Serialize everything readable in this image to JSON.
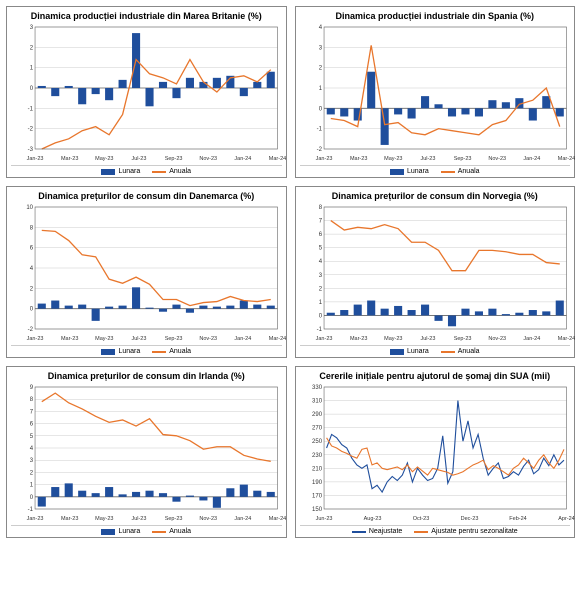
{
  "colors": {
    "bar": "#1f4e9c",
    "line": "#e8762c",
    "line2": "#1f4e9c",
    "axis": "#666",
    "grid": "#ccc",
    "text": "#333"
  },
  "x_labels": [
    "Jan-23",
    "Mar-23",
    "May-23",
    "Jul-23",
    "Sep-23",
    "Nov-23",
    "Jan-24",
    "Mar-24"
  ],
  "x_labels_us": [
    "Jun-23",
    "Aug-23",
    "Oct-23",
    "Dec-23",
    "Feb-24",
    "Apr-24"
  ],
  "charts": [
    {
      "title": "Dinamica producției industriale din Marea Britanie (%)",
      "ylim": [
        -3,
        3
      ],
      "ystep": 1,
      "bars": [
        0.1,
        -0.4,
        0.1,
        -0.8,
        -0.3,
        -0.6,
        0.4,
        2.7,
        -0.9,
        0.3,
        -0.5,
        0.5,
        0.3,
        0.5,
        0.6,
        -0.4,
        0.3,
        0.8
      ],
      "line": [
        -3.0,
        -2.7,
        -2.5,
        -2.1,
        -1.9,
        -2.3,
        -1.3,
        1.4,
        0.7,
        0.5,
        0.2,
        1.4,
        0.3,
        -0.2,
        0.5,
        0.6,
        0.3,
        0.9
      ],
      "legend": [
        "Lunara",
        "Anuala"
      ]
    },
    {
      "title": "Dinamica producției industriale din Spania (%)",
      "ylim": [
        -2,
        4
      ],
      "ystep": 1,
      "bars": [
        -0.3,
        -0.4,
        -0.6,
        1.8,
        -1.8,
        -0.3,
        -0.5,
        0.6,
        0.2,
        -0.4,
        -0.3,
        -0.4,
        0.4,
        0.3,
        0.5,
        -0.6,
        0.6,
        -0.4
      ],
      "line": [
        -0.5,
        -0.6,
        -0.9,
        3.1,
        -0.8,
        -0.7,
        -1.2,
        -1.3,
        -1.0,
        -1.1,
        -1.2,
        -1.3,
        -0.8,
        -0.6,
        0.2,
        0.4,
        1.0,
        -0.9
      ],
      "legend": [
        "Lunara",
        "Anuala"
      ]
    },
    {
      "title": "Dinamica prețurilor de consum din Danemarca (%)",
      "ylim": [
        -2,
        10
      ],
      "ystep": 2,
      "bars": [
        0.5,
        0.8,
        0.3,
        0.4,
        -1.2,
        0.2,
        0.3,
        2.1,
        0.1,
        -0.3,
        0.4,
        -0.4,
        0.3,
        0.2,
        0.3,
        0.8,
        0.4,
        0.3
      ],
      "line": [
        7.7,
        7.6,
        6.7,
        5.3,
        5.1,
        2.9,
        2.5,
        3.1,
        2.4,
        0.9,
        0.9,
        0.3,
        0.6,
        0.7,
        1.2,
        0.8,
        0.7,
        0.9
      ],
      "legend": [
        "Lunara",
        "Anuala"
      ]
    },
    {
      "title": "Dinamica prețurilor de consum din Norvegia (%)",
      "ylim": [
        -1,
        8
      ],
      "ystep": 1,
      "bars": [
        0.2,
        0.4,
        0.8,
        1.1,
        0.5,
        0.7,
        0.4,
        0.8,
        -0.4,
        -0.8,
        0.5,
        0.3,
        0.5,
        0.1,
        0.2,
        0.4,
        0.3,
        1.1
      ],
      "line": [
        7.0,
        6.3,
        6.5,
        6.4,
        6.7,
        6.4,
        5.4,
        5.4,
        4.8,
        3.3,
        3.3,
        4.8,
        4.8,
        4.7,
        4.5,
        4.5,
        3.9,
        3.8
      ],
      "legend": [
        "Lunara",
        "Anuala"
      ]
    },
    {
      "title": "Dinamica prețurilor de consum din Irlanda (%)",
      "ylim": [
        -1,
        9
      ],
      "ystep": 1,
      "bars": [
        -0.8,
        0.8,
        1.1,
        0.5,
        0.3,
        0.8,
        0.2,
        0.4,
        0.5,
        0.3,
        -0.4,
        0.1,
        -0.3,
        -0.9,
        0.7,
        1.0,
        0.5,
        0.4
      ],
      "line": [
        7.8,
        8.5,
        7.7,
        7.2,
        6.6,
        6.1,
        6.3,
        5.8,
        6.4,
        5.1,
        5.0,
        4.6,
        3.9,
        4.1,
        4.1,
        3.4,
        3.1,
        2.9
      ],
      "legend": [
        "Lunara",
        "Anuala"
      ]
    },
    {
      "title": "Cererile inițiale pentru ajutorul de șomaj din SUA (mii)",
      "ylim": [
        150,
        330
      ],
      "ystep": 20,
      "line_a": [
        240,
        260,
        255,
        245,
        240,
        225,
        215,
        210,
        215,
        180,
        185,
        175,
        190,
        198,
        192,
        200,
        218,
        190,
        210,
        200,
        192,
        195,
        210,
        258,
        188,
        205,
        310,
        250,
        280,
        240,
        260,
        225,
        200,
        210,
        218,
        195,
        198,
        205,
        200,
        213,
        222,
        202,
        208,
        225,
        214,
        230,
        215,
        222
      ],
      "line_b": [
        255,
        243,
        240,
        235,
        232,
        228,
        225,
        238,
        240,
        215,
        218,
        210,
        208,
        210,
        212,
        208,
        215,
        205,
        212,
        206,
        200,
        210,
        208,
        206,
        204,
        200,
        202,
        205,
        210,
        215,
        218,
        222,
        208,
        214,
        210,
        205,
        200,
        210,
        215,
        225,
        218,
        210,
        222,
        230,
        218,
        210,
        222,
        238
      ],
      "legend": [
        "Neajustate",
        "Ajustate pentru sezonalitate"
      ],
      "dual": true,
      "xlabels": "us"
    }
  ]
}
